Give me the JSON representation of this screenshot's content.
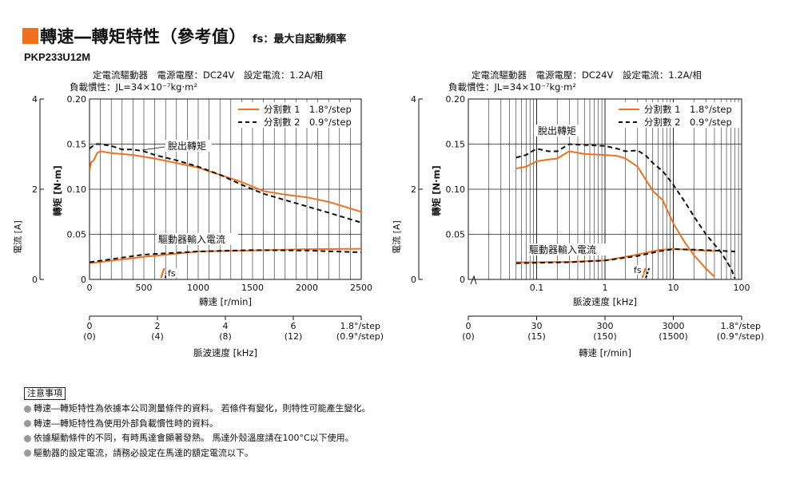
{
  "header": {
    "title": "轉速―轉矩特性（參考值）",
    "subtitle": "fs：最大自起動頻率",
    "model": "PKP233U12M"
  },
  "colors": {
    "accent": "#f07020",
    "series1": "#f07020",
    "series2": "#111111"
  },
  "chart_data": [
    {
      "type": "line",
      "info_line1": "定電流驅動器　電源電壓：DC24V　設定電流：1.2A/相",
      "info_line2": "負載慣性：JL=34×10⁻⁷kg·m²",
      "ylabel": "轉矩 [N·m]",
      "ylabel2": "電流 [A]",
      "xlabel": "轉速 [r/min]",
      "xlabel2": "脈波速度 [kHz]",
      "x_scale": "linear",
      "xlim": [
        0,
        2500
      ],
      "ylim": [
        0,
        0.2
      ],
      "y2lim": [
        0,
        4
      ],
      "x_ticks": [
        "0",
        "500",
        "1000",
        "1500",
        "2000",
        "2500"
      ],
      "y_ticks": [
        "0",
        "0.05",
        "0.10",
        "0.15",
        "0.20"
      ],
      "y2_ticks": [
        "0",
        "2",
        "4"
      ],
      "x2_ticks": [
        {
          "top": "0",
          "bottom": "(0)"
        },
        {
          "top": "2",
          "bottom": "(4)"
        },
        {
          "top": "4",
          "bottom": "(8)"
        },
        {
          "top": "6",
          "bottom": "(12)"
        },
        {
          "top": "1.8°/step",
          "bottom": "(0.9°/step)"
        }
      ],
      "legend": {
        "position": "top-right",
        "s1": "分割數 1　1.8°/step",
        "s2": "分割數 2　0.9°/step"
      },
      "annotations": {
        "pullout": "脫出轉矩",
        "current": "驅動器輸入電流",
        "fs": "fs"
      },
      "series": [
        {
          "name": "分割數 1　1.8°/step",
          "role": "pullout_torque",
          "x": [
            0,
            15,
            40,
            70,
            100,
            200,
            400,
            600,
            800,
            1000,
            1200,
            1400,
            1600,
            1800,
            2000,
            2200,
            2500
          ],
          "y": [
            0.12,
            0.13,
            0.132,
            0.14,
            0.142,
            0.14,
            0.138,
            0.134,
            0.129,
            0.124,
            0.116,
            0.108,
            0.098,
            0.094,
            0.091,
            0.086,
            0.075
          ]
        },
        {
          "name": "分割數 2　0.9°/step",
          "role": "pullout_torque",
          "x": [
            0,
            50,
            100,
            200,
            300,
            400,
            500,
            600,
            800,
            1000,
            1200,
            1400,
            1600,
            1800,
            2000,
            2200,
            2500
          ],
          "y": [
            0.145,
            0.15,
            0.15,
            0.148,
            0.144,
            0.144,
            0.142,
            0.138,
            0.132,
            0.125,
            0.116,
            0.105,
            0.095,
            0.088,
            0.081,
            0.074,
            0.063
          ]
        },
        {
          "name": "分割數 1　1.8°/step",
          "role": "input_current",
          "x": [
            0,
            500,
            1000,
            1500,
            2000,
            2500
          ],
          "y": [
            0.36,
            0.5,
            0.62,
            0.64,
            0.67,
            0.68
          ]
        },
        {
          "name": "分割數 2　0.9°/step",
          "role": "input_current",
          "x": [
            0,
            500,
            1000,
            1500,
            2000,
            2500
          ],
          "y": [
            0.38,
            0.55,
            0.62,
            0.65,
            0.64,
            0.6
          ]
        }
      ],
      "fs": [
        {
          "series": 1,
          "x": 680
        },
        {
          "series": 2,
          "x": 720
        }
      ]
    },
    {
      "type": "line",
      "info_line1": "定電流驅動器　電源電壓：DC24V　設定電流：1.2A/相",
      "info_line2": "負載慣性：JL=34×10⁻⁷kg·m²",
      "ylabel": "轉矩 [N·m]",
      "ylabel2": "電流 [A]",
      "xlabel": "脈波速度 [kHz]",
      "xlabel2": "轉速 [r/min]",
      "x_scale": "log",
      "xlim": [
        0.01,
        100
      ],
      "ylim": [
        0,
        0.2
      ],
      "y2lim": [
        0,
        4
      ],
      "x_ticks": [
        "0.1",
        "1",
        "10",
        "100"
      ],
      "y_ticks": [
        "0",
        "0.05",
        "0.10",
        "0.15",
        "0.20"
      ],
      "y2_ticks": [
        "0",
        "2",
        "4"
      ],
      "x2_ticks": [
        {
          "top": "0",
          "bottom": "(0)"
        },
        {
          "top": "30",
          "bottom": "(15)"
        },
        {
          "top": "300",
          "bottom": "(150)"
        },
        {
          "top": "3000",
          "bottom": "(1500)"
        },
        {
          "top": "1.8°/step",
          "bottom": "(0.9°/step)"
        }
      ],
      "legend": {
        "position": "top-right",
        "s1": "分割數 1　1.8°/step",
        "s2": "分割數 2　0.9°/step"
      },
      "annotations": {
        "pullout": "脫出轉矩",
        "current": "驅動器輸入電流",
        "fs": "fs"
      },
      "series": [
        {
          "name": "分割數 1　1.8°/step",
          "role": "pullout_torque",
          "x": [
            0.05,
            0.07,
            0.1,
            0.15,
            0.2,
            0.3,
            0.5,
            1,
            1.5,
            2,
            3,
            4,
            5,
            7,
            10,
            15,
            20,
            30,
            40
          ],
          "y": [
            0.123,
            0.125,
            0.131,
            0.133,
            0.134,
            0.142,
            0.139,
            0.138,
            0.137,
            0.134,
            0.125,
            0.11,
            0.098,
            0.088,
            0.062,
            0.04,
            0.027,
            0.012,
            0.003
          ]
        },
        {
          "name": "分割數 2　0.9°/step",
          "role": "pullout_torque",
          "x": [
            0.05,
            0.07,
            0.1,
            0.15,
            0.2,
            0.3,
            0.5,
            1,
            1.5,
            2,
            3,
            4,
            5,
            7,
            10,
            15,
            20,
            30,
            50,
            70,
            80
          ],
          "y": [
            0.135,
            0.138,
            0.145,
            0.142,
            0.142,
            0.15,
            0.149,
            0.148,
            0.145,
            0.142,
            0.143,
            0.137,
            0.129,
            0.12,
            0.105,
            0.085,
            0.07,
            0.05,
            0.03,
            0.012,
            0.001
          ]
        },
        {
          "name": "分割數 1　1.8°/step",
          "role": "input_current",
          "x": [
            0.05,
            0.1,
            0.3,
            1,
            3,
            6,
            10,
            20,
            40
          ],
          "y": [
            0.38,
            0.38,
            0.39,
            0.42,
            0.55,
            0.65,
            0.68,
            0.65,
            0.63
          ]
        },
        {
          "name": "分割數 2　0.9°/step",
          "role": "input_current",
          "x": [
            0.05,
            0.1,
            0.3,
            1,
            3,
            6,
            10,
            20,
            40,
            80
          ],
          "y": [
            0.36,
            0.37,
            0.38,
            0.42,
            0.52,
            0.62,
            0.67,
            0.66,
            0.64,
            0.62
          ]
        }
      ],
      "fs": [
        {
          "series": 1,
          "x": 3.8
        },
        {
          "series": 2,
          "x": 4.3
        }
      ]
    }
  ],
  "notes": {
    "title": "注意事項",
    "items": [
      "轉速―轉矩特性為依據本公司測量條件的資料。 若條件有變化，則特性可能產生變化。",
      "轉速―轉矩特性為使用外部負載慣性時的資料。",
      "依據驅動條件的不同，有時馬達會顯著發熱。 馬達外殼溫度請在100°C以下使用。",
      "驅動器的設定電流，請務必設定在馬達的額定電流以下。"
    ]
  }
}
